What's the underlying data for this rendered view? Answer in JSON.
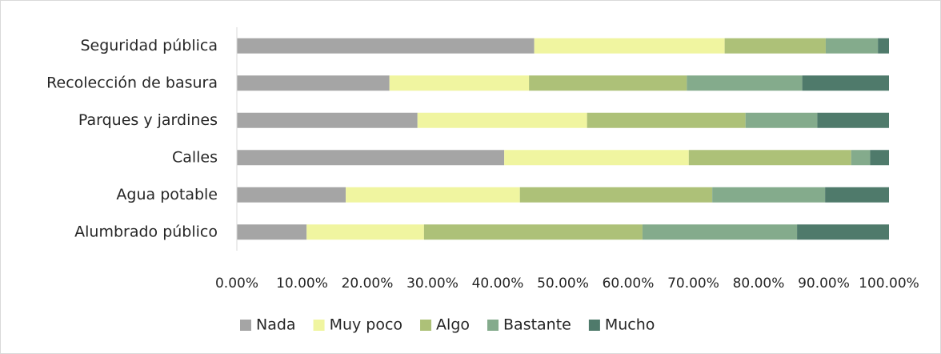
{
  "chart_data": {
    "type": "stacked_bar_horizontal",
    "categories": [
      "Seguridad pública",
      "Recolección de basura",
      "Parques y jardines",
      "Calles",
      "Agua potable",
      "Alumbrado público"
    ],
    "series": [
      {
        "name": "Nada",
        "color": "#a5a5a5",
        "values": [
          45.6,
          23.4,
          27.7,
          41.0,
          16.7,
          10.7
        ]
      },
      {
        "name": "Muy poco",
        "color": "#f0f5a0",
        "values": [
          29.2,
          21.4,
          26.0,
          28.3,
          26.7,
          18.0
        ]
      },
      {
        "name": "Algo",
        "color": "#adc178",
        "values": [
          15.5,
          24.2,
          24.3,
          24.9,
          29.5,
          33.5
        ]
      },
      {
        "name": "Bastante",
        "color": "#84ab8c",
        "values": [
          8.0,
          17.7,
          11.0,
          2.9,
          17.3,
          23.7
        ]
      },
      {
        "name": "Mucho",
        "color": "#4f7a6b",
        "values": [
          1.7,
          13.3,
          11.0,
          2.9,
          9.8,
          14.1
        ]
      }
    ],
    "xlim": [
      0,
      100
    ],
    "xticks": [
      {
        "value": 0,
        "label": "0.00%"
      },
      {
        "value": 10,
        "label": "10.00%"
      },
      {
        "value": 20,
        "label": "20.00%"
      },
      {
        "value": 30,
        "label": "30.00%"
      },
      {
        "value": 40,
        "label": "40.00%"
      },
      {
        "value": 50,
        "label": "50.00%"
      },
      {
        "value": 60,
        "label": "60.00%"
      },
      {
        "value": 70,
        "label": "70.00%"
      },
      {
        "value": 80,
        "label": "80.00%"
      },
      {
        "value": 90,
        "label": "90.00%"
      },
      {
        "value": 100,
        "label": "100.00%"
      }
    ],
    "legend": "bottom"
  }
}
